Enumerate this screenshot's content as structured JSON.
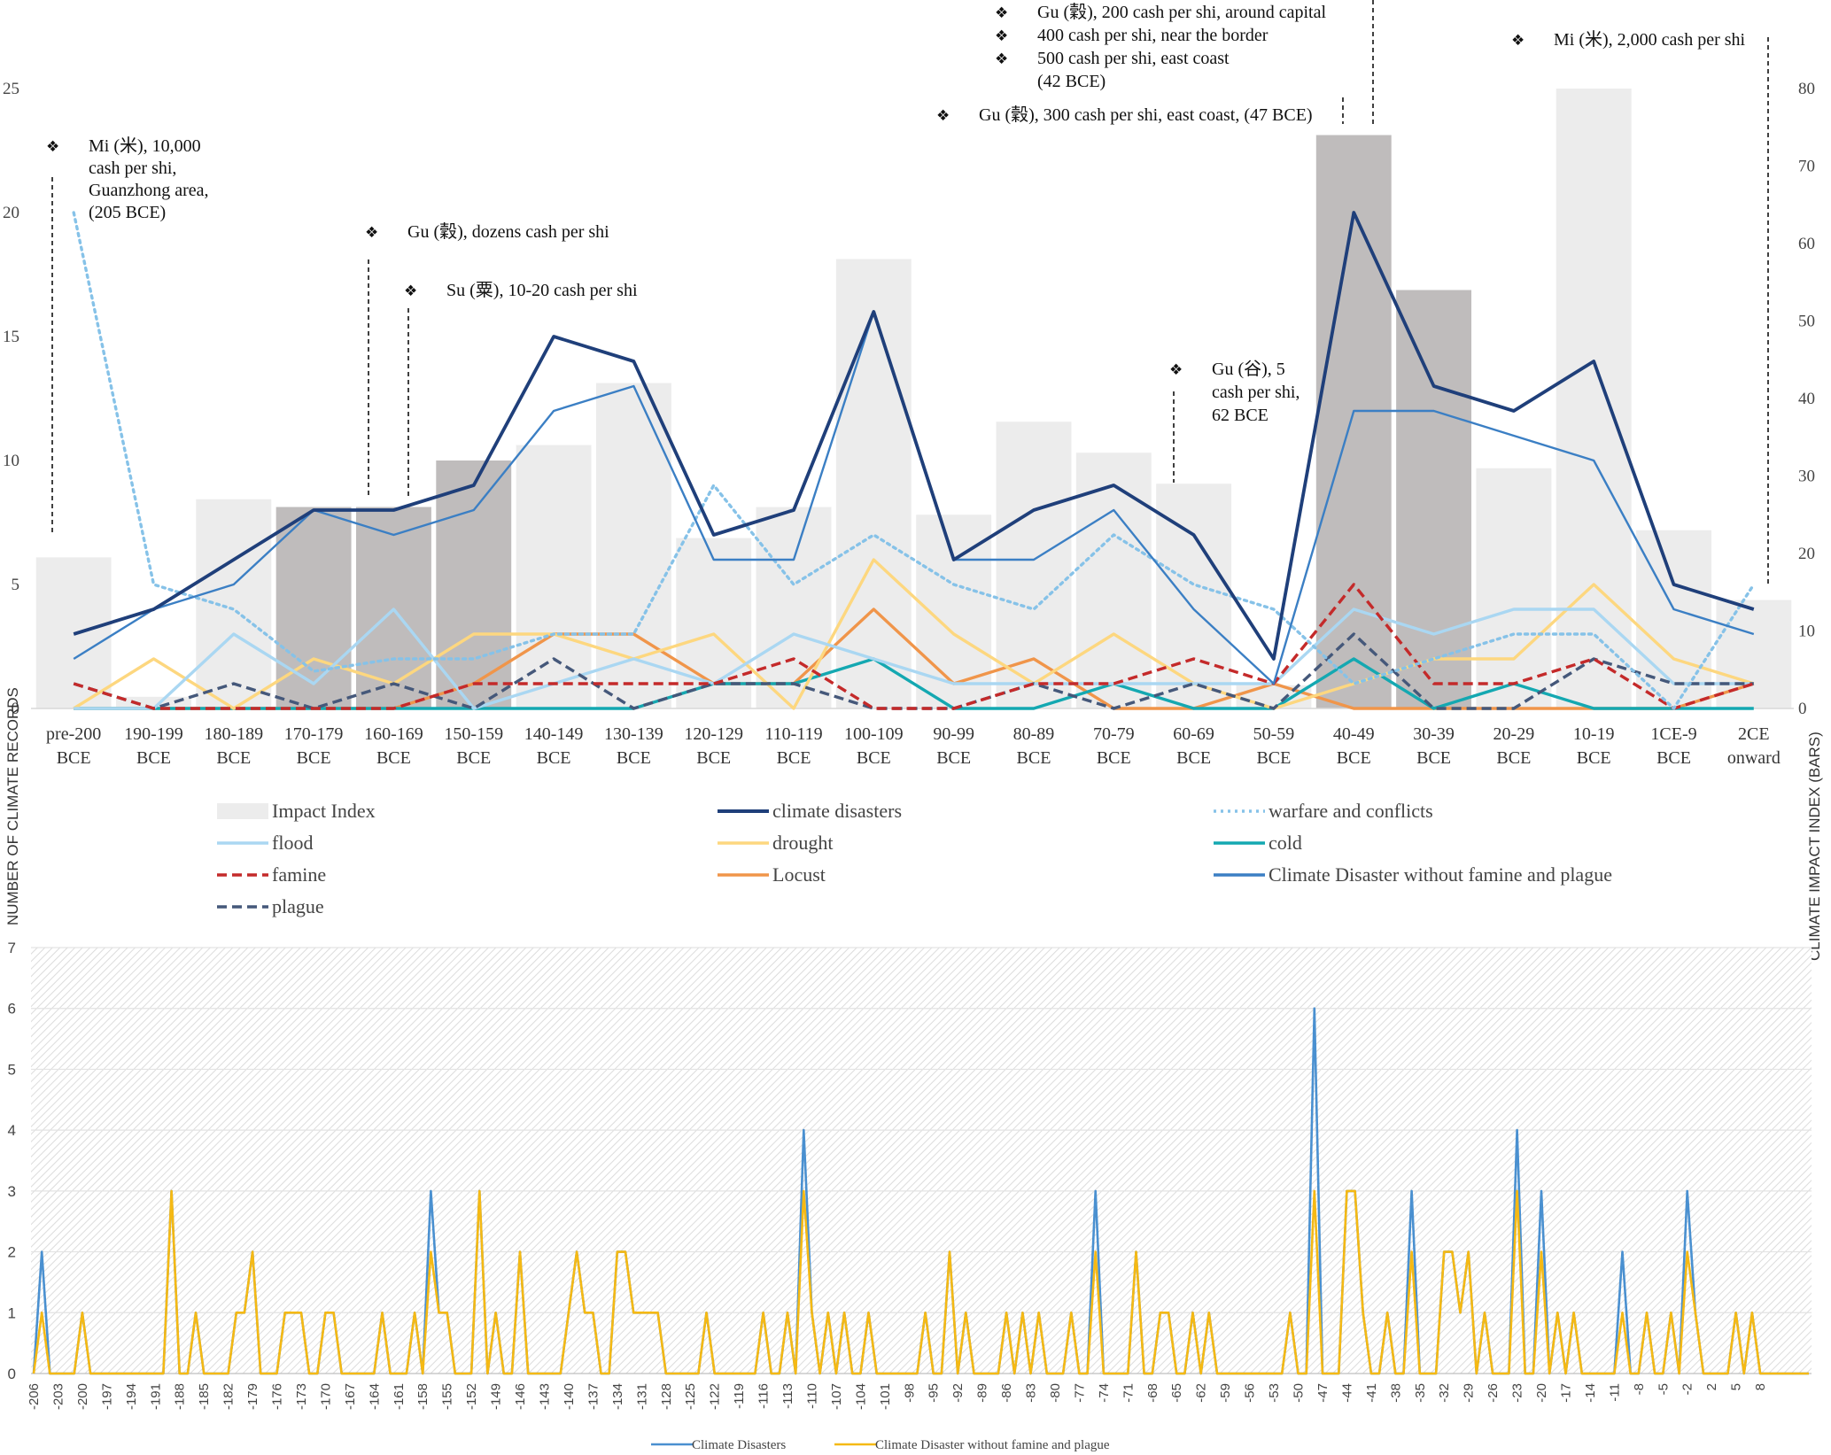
{
  "chart_data": [
    {
      "type": "bar+line",
      "title": "",
      "ylabel": "NUMBER OF CLIMATE RECORDS",
      "y2label": "CLIMATE IMPACT INDEX (BARS)",
      "ylim": [
        0,
        25
      ],
      "y2lim": [
        0,
        80
      ],
      "yticks": [
        "0",
        "5",
        "10",
        "15",
        "20",
        "25"
      ],
      "y2ticks": [
        "0",
        "10",
        "20",
        "30",
        "40",
        "50",
        "60",
        "70",
        "80"
      ],
      "categories": [
        [
          "pre-200",
          "BCE"
        ],
        [
          "190-199",
          "BCE"
        ],
        [
          "180-189",
          "BCE"
        ],
        [
          "170-179",
          "BCE"
        ],
        [
          "160-169",
          "BCE"
        ],
        [
          "150-159",
          "BCE"
        ],
        [
          "140-149",
          "BCE"
        ],
        [
          "130-139",
          "BCE"
        ],
        [
          "120-129",
          "BCE"
        ],
        [
          "110-119",
          "BCE"
        ],
        [
          "100-109",
          "BCE"
        ],
        [
          "90-99",
          "BCE"
        ],
        [
          "80-89",
          "BCE"
        ],
        [
          "70-79",
          "BCE"
        ],
        [
          "60-69",
          "BCE"
        ],
        [
          "50-59",
          "BCE"
        ],
        [
          "40-49",
          "BCE"
        ],
        [
          "30-39",
          "BCE"
        ],
        [
          "20-29",
          "BCE"
        ],
        [
          "10-19",
          "BCE"
        ],
        [
          "1CE-9",
          "BCE"
        ],
        [
          "2CE",
          "onward"
        ]
      ],
      "bars": {
        "name": "Impact Index",
        "axis": "secondary",
        "values": [
          19.5,
          1.5,
          27,
          26,
          26,
          32,
          34,
          42,
          22,
          26,
          58,
          25,
          37,
          33,
          29,
          3,
          74,
          54,
          31,
          80,
          23,
          14
        ],
        "highlighted": [
          false,
          false,
          false,
          true,
          true,
          true,
          false,
          false,
          false,
          false,
          false,
          false,
          false,
          false,
          false,
          false,
          true,
          true,
          false,
          false,
          false,
          false
        ]
      },
      "series": [
        {
          "name": "climate disasters",
          "color": "#1f3f7a",
          "style": "solid",
          "values": [
            3,
            4,
            6,
            8,
            8,
            9,
            15,
            14,
            7,
            8,
            16,
            6,
            8,
            9,
            7,
            2,
            20,
            13,
            12,
            14,
            5,
            4
          ]
        },
        {
          "name": "warfare and conflicts",
          "color": "#86c2e8",
          "style": "dotted",
          "values": [
            20,
            5,
            4,
            1.5,
            2,
            2,
            3,
            3,
            9,
            5,
            7,
            5,
            4,
            7,
            5,
            4,
            1,
            2,
            3,
            3,
            0,
            5
          ]
        },
        {
          "name": "flood",
          "color": "#aad7f2",
          "style": "solid",
          "values": [
            0,
            0,
            3,
            1,
            4,
            0,
            1,
            2,
            1,
            3,
            2,
            1,
            1,
            1,
            1,
            1,
            4,
            3,
            4,
            4,
            1,
            1
          ]
        },
        {
          "name": "drought",
          "color": "#fdd77f",
          "style": "solid",
          "values": [
            0,
            2,
            0,
            2,
            1,
            3,
            3,
            2,
            3,
            0,
            6,
            3,
            1,
            3,
            1,
            0,
            1,
            2,
            2,
            5,
            2,
            1
          ]
        },
        {
          "name": "cold",
          "color": "#14a8b1",
          "style": "solid",
          "values": [
            0,
            0,
            0,
            0,
            0,
            0,
            0,
            0,
            1,
            1,
            2,
            0,
            0,
            1,
            0,
            0,
            2,
            0,
            1,
            0,
            0,
            0
          ]
        },
        {
          "name": "famine",
          "color": "#c42a2a",
          "style": "dashed",
          "values": [
            1,
            0,
            0,
            0,
            0,
            1,
            1,
            1,
            1,
            2,
            0,
            0,
            1,
            1,
            2,
            1,
            5,
            1,
            1,
            2,
            0,
            1
          ]
        },
        {
          "name": "Locust",
          "color": "#f0954a",
          "style": "solid",
          "values": [
            0,
            0,
            0,
            0,
            0,
            1,
            3,
            3,
            1,
            1,
            4,
            1,
            2,
            0,
            0,
            1,
            0,
            0,
            0,
            0,
            0,
            1
          ]
        },
        {
          "name": "Climate Disaster without famine and plague",
          "color": "#3b7fc4",
          "style": "solid",
          "values": [
            2,
            4,
            5,
            8,
            7,
            8,
            12,
            13,
            6,
            6,
            16,
            6,
            6,
            8,
            4,
            1,
            12,
            12,
            11,
            10,
            4,
            3
          ]
        },
        {
          "name": "plague",
          "color": "#45587a",
          "style": "dashed",
          "values": [
            1,
            0,
            1,
            0,
            1,
            0,
            2,
            0,
            1,
            1,
            0,
            0,
            1,
            0,
            1,
            0,
            3,
            0,
            0,
            2,
            1,
            1
          ]
        }
      ],
      "legend": {
        "placement": "bottom",
        "entries": [
          "Impact Index",
          "climate disasters",
          "warfare and conflicts",
          "flood",
          "drought",
          "cold",
          "famine",
          "Locust",
          "Climate Disaster without famine and plague",
          "plague"
        ]
      },
      "annotations": [
        {
          "category_index": 0,
          "lines": [
            {
              "bullet": true,
              "text": "Mi (米), 10,000"
            },
            {
              "bullet": false,
              "text": "cash per shi,"
            },
            {
              "bullet": false,
              "text": "Guanzhong area,"
            },
            {
              "bullet": false,
              "text": "(205 BCE)"
            }
          ]
        },
        {
          "category_index": 3,
          "lines": [
            {
              "bullet": true,
              "text": "Gu (穀), dozens cash per shi"
            }
          ]
        },
        {
          "category_index": 4,
          "lines": [
            {
              "bullet": true,
              "text": "Su (粟), 10-20 cash per shi"
            }
          ]
        },
        {
          "category_index": 14,
          "lines": [
            {
              "bullet": true,
              "text": "Gu (谷), 5"
            },
            {
              "bullet": false,
              "text": "cash per shi,"
            },
            {
              "bullet": false,
              "text": "62 BCE"
            }
          ]
        },
        {
          "category_index": 16,
          "lines": [
            {
              "bullet": true,
              "text": "Gu (穀), 200 cash per shi, around capital"
            },
            {
              "bullet": true,
              "text": "400 cash per shi, near the border"
            },
            {
              "bullet": true,
              "text": "500 cash per shi, east coast"
            },
            {
              "bullet": false,
              "text": "(42 BCE)"
            }
          ]
        },
        {
          "category_index": 15,
          "lines": [
            {
              "bullet": true,
              "text": "Gu (穀), 300 cash per shi, east coast, (47 BCE)"
            }
          ]
        },
        {
          "category_index": 21,
          "lines": [
            {
              "bullet": true,
              "text": "Mi (米), 2,000 cash per shi"
            }
          ]
        }
      ]
    },
    {
      "type": "line",
      "title": "",
      "ylim": [
        0,
        7
      ],
      "yticks": [
        "0",
        "1",
        "2",
        "3",
        "4",
        "5",
        "6",
        "7"
      ],
      "x_start": -206,
      "x_end": 8,
      "x_tick_labels": [
        "-206",
        "-203",
        "-200",
        "-197",
        "-194",
        "-191",
        "-188",
        "-185",
        "-182",
        "-179",
        "-176",
        "-173",
        "-170",
        "-167",
        "-164",
        "-161",
        "-158",
        "-155",
        "-152",
        "-149",
        "-146",
        "-143",
        "-140",
        "-137",
        "-134",
        "-131",
        "-128",
        "-125",
        "-122",
        "-119",
        "-116",
        "-113",
        "-110",
        "-107",
        "-104",
        "-101",
        "-98",
        "-95",
        "-92",
        "-89",
        "-86",
        "-83",
        "-80",
        "-77",
        "-74",
        "-71",
        "-68",
        "-65",
        "-62",
        "-59",
        "-56",
        "-53",
        "-50",
        "-47",
        "-44",
        "-41",
        "-38",
        "-35",
        "-32",
        "-29",
        "-26",
        "-23",
        "-20",
        "-17",
        "-14",
        "-11",
        "-8",
        "-5",
        "-2",
        "2",
        "5",
        "8"
      ],
      "series": [
        {
          "name": "Climate Disasters",
          "color": "#4a90d0",
          "values": [
            0,
            2,
            0,
            0,
            0,
            0,
            1,
            0,
            0,
            0,
            0,
            0,
            0,
            0,
            0,
            0,
            0,
            3,
            0,
            0,
            1,
            0,
            0,
            0,
            0,
            1,
            1,
            2,
            0,
            0,
            0,
            1,
            1,
            1,
            0,
            0,
            1,
            1,
            0,
            0,
            0,
            0,
            0,
            1,
            0,
            0,
            0,
            1,
            0,
            3,
            1,
            1,
            0,
            0,
            0,
            3,
            0,
            1,
            0,
            0,
            2,
            0,
            0,
            0,
            0,
            0,
            1,
            2,
            1,
            1,
            0,
            0,
            2,
            2,
            1,
            1,
            1,
            1,
            0,
            0,
            0,
            0,
            0,
            1,
            0,
            0,
            0,
            0,
            0,
            0,
            1,
            0,
            0,
            1,
            0,
            4,
            1,
            0,
            1,
            0,
            1,
            0,
            0,
            1,
            0,
            0,
            0,
            0,
            0,
            0,
            1,
            0,
            0,
            2,
            0,
            1,
            0,
            0,
            0,
            0,
            1,
            0,
            1,
            0,
            1,
            0,
            0,
            0,
            1,
            0,
            0,
            3,
            0,
            0,
            0,
            0,
            2,
            0,
            0,
            1,
            1,
            0,
            0,
            1,
            0,
            1,
            0,
            0,
            0,
            0,
            0,
            0,
            0,
            0,
            0,
            1,
            0,
            0,
            6,
            0,
            0,
            0,
            3,
            3,
            1,
            0,
            0,
            1,
            0,
            0,
            3,
            0,
            0,
            0,
            2,
            2,
            1,
            2,
            0,
            1,
            0,
            0,
            0,
            4,
            0,
            0,
            3,
            0,
            1,
            0,
            1,
            0,
            0,
            0,
            0,
            0,
            2,
            0,
            0,
            1,
            0,
            0,
            1,
            0,
            3,
            1,
            0,
            0,
            0,
            0,
            1,
            0,
            1,
            0,
            0,
            0,
            0,
            0,
            0,
            0
          ]
        },
        {
          "name": "Climate Disaster without famine and plague",
          "color": "#f5b914",
          "values": [
            0,
            1,
            0,
            0,
            0,
            0,
            1,
            0,
            0,
            0,
            0,
            0,
            0,
            0,
            0,
            0,
            0,
            3,
            0,
            0,
            1,
            0,
            0,
            0,
            0,
            1,
            1,
            2,
            0,
            0,
            0,
            1,
            1,
            1,
            0,
            0,
            1,
            1,
            0,
            0,
            0,
            0,
            0,
            1,
            0,
            0,
            0,
            1,
            0,
            2,
            1,
            1,
            0,
            0,
            0,
            3,
            0,
            1,
            0,
            0,
            2,
            0,
            0,
            0,
            0,
            0,
            1,
            2,
            1,
            1,
            0,
            0,
            2,
            2,
            1,
            1,
            1,
            1,
            0,
            0,
            0,
            0,
            0,
            1,
            0,
            0,
            0,
            0,
            0,
            0,
            1,
            0,
            0,
            1,
            0,
            3,
            1,
            0,
            1,
            0,
            1,
            0,
            0,
            1,
            0,
            0,
            0,
            0,
            0,
            0,
            1,
            0,
            0,
            2,
            0,
            1,
            0,
            0,
            0,
            0,
            1,
            0,
            1,
            0,
            1,
            0,
            0,
            0,
            1,
            0,
            0,
            2,
            0,
            0,
            0,
            0,
            2,
            0,
            0,
            1,
            1,
            0,
            0,
            1,
            0,
            1,
            0,
            0,
            0,
            0,
            0,
            0,
            0,
            0,
            0,
            1,
            0,
            0,
            3,
            0,
            0,
            0,
            3,
            3,
            1,
            0,
            0,
            1,
            0,
            0,
            2,
            0,
            0,
            0,
            2,
            2,
            1,
            2,
            0,
            1,
            0,
            0,
            0,
            3,
            0,
            0,
            2,
            0,
            1,
            0,
            1,
            0,
            0,
            0,
            0,
            0,
            1,
            0,
            0,
            1,
            0,
            0,
            1,
            0,
            2,
            1,
            0,
            0,
            0,
            0,
            1,
            0,
            1,
            0,
            0,
            0,
            0,
            0,
            0,
            0
          ]
        }
      ],
      "legend": {
        "placement": "bottom",
        "entries": [
          "Climate Disasters",
          "Climate Disaster without famine and plague"
        ]
      }
    }
  ]
}
